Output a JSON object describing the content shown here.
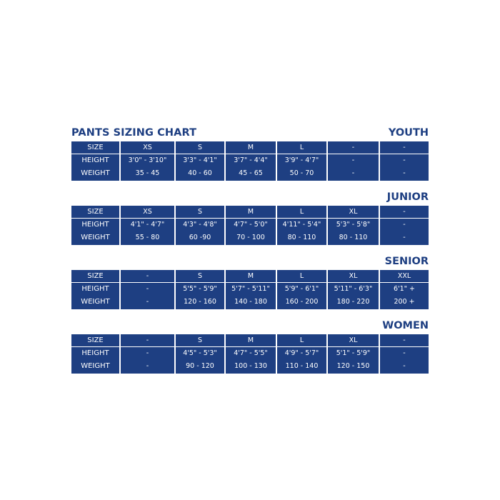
{
  "title": "PANTS SIZING CHART",
  "row_labels": [
    "SIZE",
    "HEIGHT",
    "WEIGHT"
  ],
  "sections": [
    {
      "label": "YOUTH",
      "sizes": [
        "XS",
        "S",
        "M",
        "L",
        "-",
        "-"
      ],
      "heights": [
        "3'0\" - 3'10\"",
        "3'3\" - 4'1\"",
        "3'7\" - 4'4\"",
        "3'9\" - 4'7\"",
        "-",
        "-"
      ],
      "weights": [
        "35 - 45",
        "40 - 60",
        "45 - 65",
        "50 - 70",
        "-",
        "-"
      ]
    },
    {
      "label": "JUNIOR",
      "sizes": [
        "XS",
        "S",
        "M",
        "L",
        "XL",
        "-"
      ],
      "heights": [
        "4'1\" - 4'7\"",
        "4'3\" - 4'8\"",
        "4'7\" - 5'0\"",
        "4'11\" - 5'4\"",
        "5'3\" - 5'8\"",
        "-"
      ],
      "weights": [
        "55 - 80",
        "60 -90",
        "70 - 100",
        "80 - 110",
        "80 - 110",
        "-"
      ]
    },
    {
      "label": "SENIOR",
      "sizes": [
        "-",
        "S",
        "M",
        "L",
        "XL",
        "XXL"
      ],
      "heights": [
        "-",
        "5'5\" - 5'9\"",
        "5'7\" - 5'11\"",
        "5'9\" - 6'1\"",
        "5'11\" - 6'3\"",
        "6'1\" +"
      ],
      "weights": [
        "-",
        "120 - 160",
        "140 - 180",
        "160 - 200",
        "180 - 220",
        "200 +"
      ]
    },
    {
      "label": "WOMEN",
      "sizes": [
        "-",
        "S",
        "M",
        "L",
        "XL",
        "-"
      ],
      "heights": [
        "-",
        "4'5\" - 5'3\"",
        "4'7\" - 5'5\"",
        "4'9\" - 5'7\"",
        "5'1\" - 5'9\"",
        "-"
      ],
      "weights": [
        "-",
        "90 - 120",
        "100 - 130",
        "110 - 140",
        "120 - 150",
        "-"
      ]
    }
  ],
  "colors": {
    "navy": "#1e3f82",
    "white": "#ffffff"
  }
}
